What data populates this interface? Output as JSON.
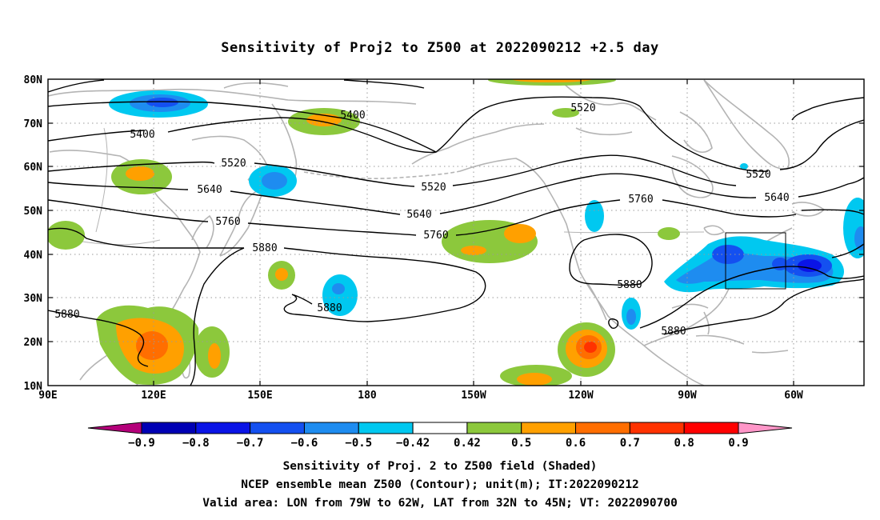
{
  "title": "Sensitivity of Proj2 to Z500 at 2022090212 +2.5 day",
  "lat_labels": [
    "80N",
    "70N",
    "60N",
    "50N",
    "40N",
    "30N",
    "20N",
    "10N"
  ],
  "lon_labels": [
    "90E",
    "120E",
    "150E",
    "180",
    "150W",
    "120W",
    "90W",
    "60W"
  ],
  "contour_labels": [
    {
      "text": "5400"
    },
    {
      "text": "5400"
    },
    {
      "text": "5520"
    },
    {
      "text": "5520"
    },
    {
      "text": "5520"
    },
    {
      "text": "5520"
    },
    {
      "text": "5640"
    },
    {
      "text": "5640"
    },
    {
      "text": "5640"
    },
    {
      "text": "5760"
    },
    {
      "text": "5760"
    },
    {
      "text": "5760"
    },
    {
      "text": "5880"
    },
    {
      "text": "5880"
    },
    {
      "text": "5880"
    },
    {
      "text": "5880"
    },
    {
      "text": "5880"
    }
  ],
  "colorbar": {
    "labels": [
      "-0.9",
      "-0.8",
      "-0.7",
      "-0.6",
      "-0.5",
      "-0.42",
      "0.42",
      "0.5",
      "0.6",
      "0.7",
      "0.8",
      "0.9"
    ],
    "colors": [
      "#b4007a",
      "#0000b4",
      "#0a14e6",
      "#1450f0",
      "#1e8cf0",
      "#00c8f0",
      "#ffffff",
      "#8cc83c",
      "#ffa000",
      "#ff6e00",
      "#ff3200",
      "#ff0000",
      "#ff96c8"
    ]
  },
  "footer": [
    "Sensitivity of Proj. 2 to Z500 field (Shaded)",
    "NCEP ensemble mean Z500 (Contour); unit(m); IT:2022090212",
    "Valid area: LON from 79W to 62W, LAT from 32N to 45N; VT: 2022090700"
  ]
}
